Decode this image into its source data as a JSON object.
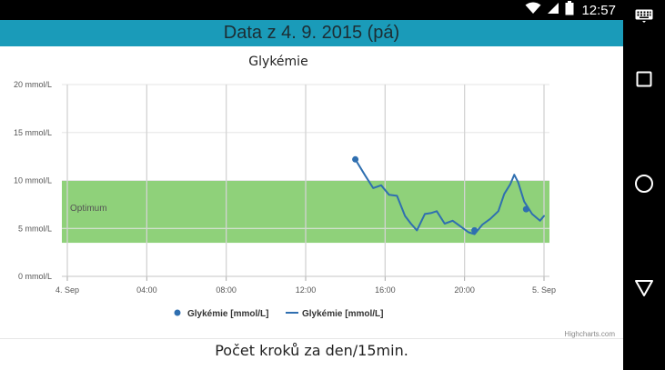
{
  "status": {
    "time": "12:57",
    "icons": [
      "wifi-icon",
      "cell-signal-icon",
      "battery-icon"
    ]
  },
  "nav": {
    "buttons": [
      "keyboard-icon",
      "recents-icon",
      "home-icon",
      "back-icon"
    ]
  },
  "header": {
    "title": "Data z 4. 9. 2015 (pá)",
    "color": "#1a9bb9"
  },
  "chart_data": {
    "type": "line",
    "title": "Glykémie",
    "y_ticks": [
      "0 mmol/L",
      "5 mmol/L",
      "10 mmol/L",
      "15 mmol/L",
      "20 mmol/L"
    ],
    "ylim": [
      0,
      20
    ],
    "x_ticks": [
      "4. Sep",
      "04:00",
      "08:00",
      "12:00",
      "16:00",
      "20:00",
      "5. Sep"
    ],
    "xlim": [
      0,
      24
    ],
    "grid": true,
    "band": {
      "label": "Optimum",
      "from": 3.5,
      "to": 10,
      "color": "#8fd17a"
    },
    "series": [
      {
        "name": "Glykémie [mmol/L]",
        "type": "scatter",
        "color": "#2f6fb0",
        "points": [
          [
            14.5,
            12.2
          ],
          [
            20.5,
            4.8
          ],
          [
            23.1,
            7.0
          ]
        ]
      },
      {
        "name": "Glykémie [mmol/L]",
        "type": "line",
        "color": "#2f6fb0",
        "points": [
          [
            14.5,
            12.2
          ],
          [
            15.0,
            10.5
          ],
          [
            15.4,
            9.2
          ],
          [
            15.8,
            9.5
          ],
          [
            16.2,
            8.5
          ],
          [
            16.6,
            8.4
          ],
          [
            17.0,
            6.3
          ],
          [
            17.3,
            5.5
          ],
          [
            17.6,
            4.8
          ],
          [
            18.0,
            6.5
          ],
          [
            18.3,
            6.6
          ],
          [
            18.6,
            6.8
          ],
          [
            19.0,
            5.5
          ],
          [
            19.4,
            5.8
          ],
          [
            19.8,
            5.2
          ],
          [
            20.2,
            4.6
          ],
          [
            20.5,
            4.4
          ],
          [
            20.9,
            5.4
          ],
          [
            21.3,
            6.0
          ],
          [
            21.7,
            6.8
          ],
          [
            22.0,
            8.6
          ],
          [
            22.3,
            9.6
          ],
          [
            22.5,
            10.6
          ],
          [
            22.7,
            9.8
          ],
          [
            23.0,
            7.8
          ],
          [
            23.4,
            6.5
          ],
          [
            23.8,
            5.8
          ],
          [
            24.0,
            6.3
          ]
        ]
      }
    ],
    "legend": "bottom-center",
    "credit": "Highcharts.com"
  },
  "footer": {
    "text": "Počet kroků za den/15min."
  }
}
